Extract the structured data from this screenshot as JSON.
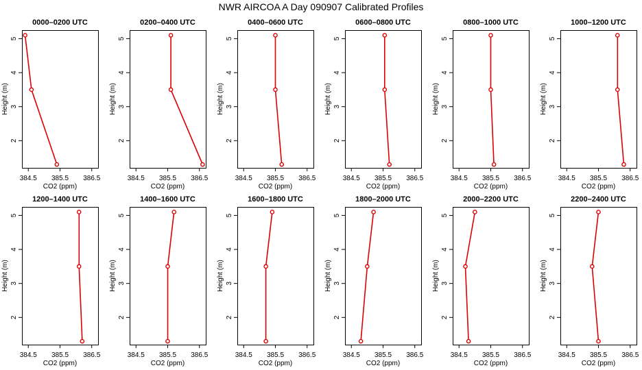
{
  "figure": {
    "title": "NWR AIRCOA A  Day 090907  Calibrated Profiles",
    "line_color": "#dd0000",
    "marker_color": "#dd0000"
  },
  "chart_data": [
    {
      "type": "line",
      "title": "0000–0200 UTC",
      "xlabel": "CO2 (ppm)",
      "ylabel": "Height (m)",
      "x": [
        384.4,
        384.6,
        385.4
      ],
      "y": [
        5.1,
        3.5,
        1.3
      ],
      "xlim": [
        384.3,
        386.7
      ],
      "ylim": [
        1.2,
        5.25
      ],
      "xticks": [
        "384.5",
        "385.5",
        "386.5"
      ],
      "yticks": [
        "2",
        "3",
        "4",
        "5"
      ]
    },
    {
      "type": "line",
      "title": "0200–0400 UTC",
      "xlabel": "CO2 (ppm)",
      "ylabel": "Height (m)",
      "x": [
        385.6,
        385.6,
        386.6
      ],
      "y": [
        5.1,
        3.5,
        1.3
      ],
      "xlim": [
        384.3,
        386.7
      ],
      "ylim": [
        1.2,
        5.25
      ],
      "xticks": [
        "384.5",
        "385.5",
        "386.5"
      ],
      "yticks": [
        "2",
        "3",
        "4",
        "5"
      ]
    },
    {
      "type": "line",
      "title": "0400–0600 UTC",
      "xlabel": "CO2 (ppm)",
      "ylabel": "Height (m)",
      "x": [
        385.5,
        385.5,
        385.7
      ],
      "y": [
        5.1,
        3.5,
        1.3
      ],
      "xlim": [
        384.3,
        386.7
      ],
      "ylim": [
        1.2,
        5.25
      ],
      "xticks": [
        "384.5",
        "385.5",
        "386.5"
      ],
      "yticks": [
        "2",
        "3",
        "4",
        "5"
      ]
    },
    {
      "type": "line",
      "title": "0600–0800 UTC",
      "xlabel": "CO2 (ppm)",
      "ylabel": "Height (m)",
      "x": [
        385.55,
        385.55,
        385.7
      ],
      "y": [
        5.1,
        3.5,
        1.3
      ],
      "xlim": [
        384.3,
        386.7
      ],
      "ylim": [
        1.2,
        5.25
      ],
      "xticks": [
        "384.5",
        "385.5",
        "386.5"
      ],
      "yticks": [
        "2",
        "3",
        "4",
        "5"
      ]
    },
    {
      "type": "line",
      "title": "0800–1000 UTC",
      "xlabel": "CO2 (ppm)",
      "ylabel": "Height (m)",
      "x": [
        385.5,
        385.5,
        385.6
      ],
      "y": [
        5.1,
        3.5,
        1.3
      ],
      "xlim": [
        384.3,
        386.7
      ],
      "ylim": [
        1.2,
        5.25
      ],
      "xticks": [
        "384.5",
        "385.5",
        "386.5"
      ],
      "yticks": [
        "2",
        "3",
        "4",
        "5"
      ]
    },
    {
      "type": "line",
      "title": "1000–1200 UTC",
      "xlabel": "CO2 (ppm)",
      "ylabel": "Height (m)",
      "x": [
        386.1,
        386.1,
        386.3
      ],
      "y": [
        5.1,
        3.5,
        1.3
      ],
      "xlim": [
        384.3,
        386.7
      ],
      "ylim": [
        1.2,
        5.25
      ],
      "xticks": [
        "384.5",
        "385.5",
        "386.5"
      ],
      "yticks": [
        "2",
        "3",
        "4",
        "5"
      ]
    },
    {
      "type": "line",
      "title": "1200–1400 UTC",
      "xlabel": "CO2 (ppm)",
      "ylabel": "Height (m)",
      "x": [
        386.1,
        386.1,
        386.2
      ],
      "y": [
        5.1,
        3.5,
        1.3
      ],
      "xlim": [
        384.3,
        386.7
      ],
      "ylim": [
        1.2,
        5.25
      ],
      "xticks": [
        "384.5",
        "385.5",
        "386.5"
      ],
      "yticks": [
        "2",
        "3",
        "4",
        "5"
      ]
    },
    {
      "type": "line",
      "title": "1400–1600 UTC",
      "xlabel": "CO2 (ppm)",
      "ylabel": "Height (m)",
      "x": [
        385.7,
        385.5,
        385.5
      ],
      "y": [
        5.1,
        3.5,
        1.3
      ],
      "xlim": [
        384.3,
        386.7
      ],
      "ylim": [
        1.2,
        5.25
      ],
      "xticks": [
        "384.5",
        "385.5",
        "386.5"
      ],
      "yticks": [
        "2",
        "3",
        "4",
        "5"
      ]
    },
    {
      "type": "line",
      "title": "1600–1800 UTC",
      "xlabel": "CO2 (ppm)",
      "ylabel": "Height (m)",
      "x": [
        385.4,
        385.2,
        385.2
      ],
      "y": [
        5.1,
        3.5,
        1.3
      ],
      "xlim": [
        384.3,
        386.7
      ],
      "ylim": [
        1.2,
        5.25
      ],
      "xticks": [
        "384.5",
        "385.5",
        "386.5"
      ],
      "yticks": [
        "2",
        "3",
        "4",
        "5"
      ]
    },
    {
      "type": "line",
      "title": "1800–2000 UTC",
      "xlabel": "CO2 (ppm)",
      "ylabel": "Height (m)",
      "x": [
        385.2,
        385.0,
        384.8
      ],
      "y": [
        5.1,
        3.5,
        1.3
      ],
      "xlim": [
        384.3,
        386.7
      ],
      "ylim": [
        1.2,
        5.25
      ],
      "xticks": [
        "384.5",
        "385.5",
        "386.5"
      ],
      "yticks": [
        "2",
        "3",
        "4",
        "5"
      ]
    },
    {
      "type": "line",
      "title": "2000–2200 UTC",
      "xlabel": "CO2 (ppm)",
      "ylabel": "Height (m)",
      "x": [
        385.0,
        384.7,
        384.8
      ],
      "y": [
        5.1,
        3.5,
        1.3
      ],
      "xlim": [
        384.3,
        386.7
      ],
      "ylim": [
        1.2,
        5.25
      ],
      "xticks": [
        "384.5",
        "385.5",
        "386.5"
      ],
      "yticks": [
        "2",
        "3",
        "4",
        "5"
      ]
    },
    {
      "type": "line",
      "title": "2200–2400 UTC",
      "xlabel": "CO2 (ppm)",
      "ylabel": "Height (m)",
      "x": [
        385.5,
        385.3,
        385.5
      ],
      "y": [
        5.1,
        3.5,
        1.3
      ],
      "xlim": [
        384.3,
        386.7
      ],
      "ylim": [
        1.2,
        5.25
      ],
      "xticks": [
        "384.5",
        "385.5",
        "386.5"
      ],
      "yticks": [
        "2",
        "3",
        "4",
        "5"
      ]
    }
  ]
}
